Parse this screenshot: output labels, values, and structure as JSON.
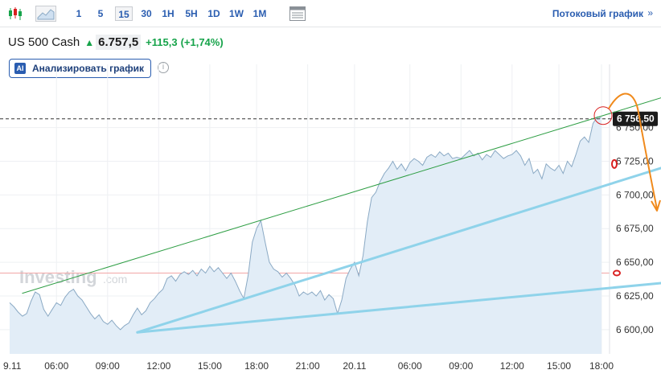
{
  "toolbar": {
    "timeframes": [
      "1",
      "5",
      "15",
      "30",
      "1H",
      "5H",
      "1D",
      "1W",
      "1M"
    ],
    "active_timeframe": "15",
    "stream_label": "Потоковый график",
    "stream_arrow": "»"
  },
  "quote": {
    "name": "US 500 Cash",
    "price": "6.757,5",
    "change": "+115,3",
    "change_pct": "(+1,74%)",
    "up_color": "#16a34a"
  },
  "ai_button": {
    "badge": "AI",
    "label": "Анализировать график"
  },
  "watermark": {
    "brand": "Investing",
    "suffix": ".com"
  },
  "chart_data": {
    "type": "area",
    "x_tick_labels": [
      "9.11",
      "06:00",
      "09:00",
      "12:00",
      "15:00",
      "18:00",
      "21:00",
      "20.11",
      "06:00",
      "09:00",
      "12:00",
      "15:00",
      "18:00"
    ],
    "y_ticks": [
      6600,
      6625,
      6650,
      6675,
      6700,
      6725,
      6750
    ],
    "y_tick_labels": [
      "6 600,00",
      "6 625,00",
      "6 650,00",
      "6 675,00",
      "6 700,00",
      "6 725,00",
      "6 750,00"
    ],
    "ylim": [
      6582,
      6785
    ],
    "current_price_label": "6 756,50",
    "current_price": 6756.5,
    "reference_line_price": 6642,
    "series": [
      {
        "values": [
          6620,
          6617,
          6613,
          6610,
          6612,
          6621,
          6628,
          6626,
          6615,
          6610,
          6615,
          6620,
          6618,
          6624,
          6628,
          6630,
          6625,
          6622,
          6617,
          6612,
          6608,
          6611,
          6606,
          6604,
          6607,
          6603,
          6600,
          6603,
          6605,
          6611,
          6616,
          6611,
          6614,
          6620,
          6623,
          6627,
          6630,
          6638,
          6640,
          6636,
          6641,
          6643,
          6641,
          6644,
          6640,
          6645,
          6642,
          6647,
          6643,
          6646,
          6642,
          6638,
          6642,
          6636,
          6629,
          6623,
          6640,
          6665,
          6675,
          6681,
          6665,
          6650,
          6645,
          6643,
          6639,
          6642,
          6638,
          6633,
          6625,
          6628,
          6626,
          6628,
          6625,
          6629,
          6622,
          6626,
          6623,
          6612,
          6622,
          6638,
          6645,
          6650,
          6640,
          6655,
          6680,
          6698,
          6702,
          6710,
          6716,
          6720,
          6725,
          6719,
          6723,
          6718,
          6724,
          6727,
          6725,
          6722,
          6728,
          6730,
          6728,
          6732,
          6729,
          6731,
          6727,
          6728,
          6727,
          6730,
          6733,
          6729,
          6731,
          6726,
          6730,
          6728,
          6733,
          6730,
          6727,
          6729,
          6730,
          6733,
          6729,
          6722,
          6727,
          6716,
          6719,
          6712,
          6723,
          6720,
          6718,
          6722,
          6716,
          6725,
          6721,
          6730,
          6740,
          6743,
          6739,
          6753,
          6758,
          6757
        ]
      }
    ],
    "annotations": {
      "channel_upper": {
        "from": [
          3,
          6627
        ],
        "to": [
          156,
          6775
        ],
        "color": "#2e9e44"
      },
      "trend_mid": {
        "from": [
          30,
          6598
        ],
        "to": [
          154,
          6721
        ],
        "color": "#8fd3ea"
      },
      "trend_low": {
        "from": [
          30,
          6598
        ],
        "to": [
          158,
          6636
        ],
        "color": "#8fd3ea"
      },
      "forecast_arrow_color": "#f08a1c",
      "marker_color": "#d92020"
    },
    "colors": {
      "line": "#8aa9c4",
      "fill": "#e2edf7",
      "grid": "#eef0f3"
    }
  }
}
